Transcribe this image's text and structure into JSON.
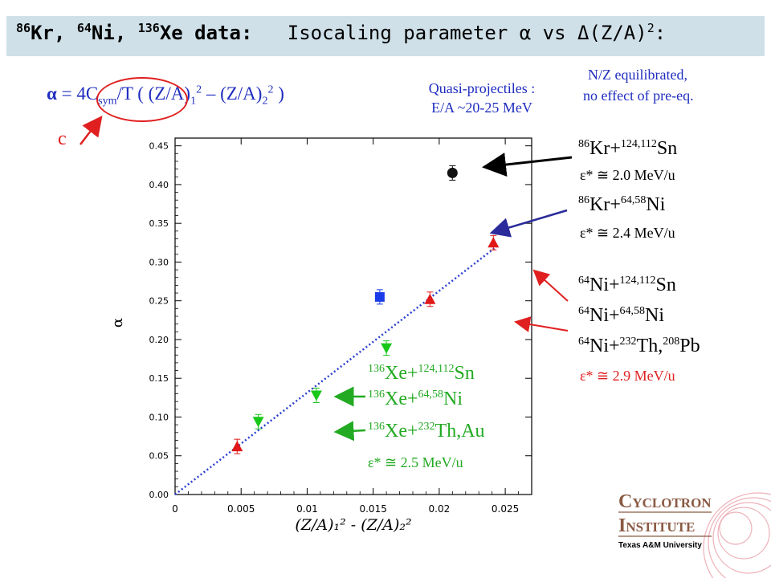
{
  "title": {
    "isotopes": "Kr, Ni, Xe data:",
    "kr_mass": "86",
    "ni_mass": "64",
    "xe_mass": "136",
    "rest": "Isocaling parameter α vs Δ(Z/A)",
    "rest_sup": "2",
    "colon": ":"
  },
  "formula": {
    "alpha": "α",
    "eq": " = 4C",
    "sym": "sym",
    "mid": "/T ( (Z/A)",
    "sub1": "1",
    "sup1": "2",
    "minus": " – (Z/A)",
    "sub2": "2",
    "sup2": "2",
    "close": " )",
    "c_label": "c"
  },
  "notes": {
    "quasi_line1": "Quasi-projectiles :",
    "quasi_line2": "E/A ~20-25 MeV",
    "nz_line1": "N/Z equilibrated,",
    "nz_line2": "no effect of pre-eq."
  },
  "legend": {
    "kr_sn": {
      "mass": "86",
      "el": "Kr",
      "plus": "+",
      "tmass": "124,112",
      "tel": "Sn"
    },
    "kr_sn_e": "ε* ≅ 2.0 MeV/u",
    "kr_ni": {
      "mass": "86",
      "el": "Kr",
      "plus": "+",
      "tmass": "64,58",
      "tel": "Ni"
    },
    "kr_ni_e": "ε* ≅ 2.4 MeV/u",
    "ni_sn": {
      "mass": "64",
      "el": "Ni",
      "plus": "+",
      "tmass": "124,112",
      "tel": "Sn"
    },
    "ni_ni": {
      "mass": "64",
      "el": "Ni",
      "plus": "+",
      "tmass": "64,58",
      "tel": "Ni"
    },
    "ni_pb": {
      "mass": "64",
      "el": "Ni",
      "plus": "+",
      "tmass": "232",
      "tel": "Th,",
      "tmass2": "208",
      "tel2": "Pb"
    },
    "ni_e": "ε* ≅ 2.9 MeV/u",
    "xe_sn": {
      "mass": "136",
      "el": "Xe",
      "plus": "+",
      "tmass": "124,112",
      "tel": "Sn"
    },
    "xe_ni": {
      "mass": "136",
      "el": "Xe",
      "plus": "+",
      "tmass": "64,58",
      "tel": "Ni"
    },
    "xe_th": {
      "mass": "136",
      "el": "Xe",
      "plus": "+",
      "tmass": "232",
      "tel": "Th,Au"
    },
    "xe_e": "ε* ≅ 2.5 MeV/u"
  },
  "logo": {
    "line1_cap": "C",
    "line1_rest": "YCLOTRON",
    "line2_cap": "I",
    "line2_rest": "NSTITUTE",
    "line3": "Texas A&M University"
  },
  "colors": {
    "blue_text": "#1f2dbf",
    "red": "#e02020",
    "green": "#22aa22",
    "black": "#000000",
    "fit_line": "#2a3fd0",
    "marker_red": "#e01818",
    "marker_green": "#18c818",
    "marker_blue": "#1a3ce8",
    "marker_black": "#111111"
  },
  "chart_data": {
    "type": "scatter",
    "xlabel": "(Z/A)₁² - (Z/A)₂²",
    "ylabel": "α",
    "xlim": [
      0,
      0.027
    ],
    "ylim": [
      0,
      0.46
    ],
    "x_ticks": [
      0,
      0.005,
      0.01,
      0.015,
      0.02,
      0.025
    ],
    "x_tick_labels": [
      "0",
      "0.005",
      "0.01",
      "0.015",
      "0.02",
      "0.025"
    ],
    "y_ticks": [
      0,
      0.05,
      0.1,
      0.15,
      0.2,
      0.25,
      0.3,
      0.35,
      0.4,
      0.45
    ],
    "y_tick_labels": [
      "0.00",
      "0.05",
      "0.10",
      "0.15",
      "0.20",
      "0.25",
      "0.30",
      "0.35",
      "0.40",
      "0.45"
    ],
    "grid": false,
    "series": [
      {
        "marker": "triangle-up",
        "color": "#e01818",
        "points": [
          {
            "x": 0.0047,
            "y": 0.062
          },
          {
            "x": 0.0193,
            "y": 0.252
          },
          {
            "x": 0.0241,
            "y": 0.325
          }
        ]
      },
      {
        "marker": "triangle-down",
        "color": "#18c818",
        "points": [
          {
            "x": 0.0063,
            "y": 0.094
          },
          {
            "x": 0.0107,
            "y": 0.128
          },
          {
            "x": 0.016,
            "y": 0.189
          }
        ]
      },
      {
        "marker": "square",
        "color": "#1a3ce8",
        "points": [
          {
            "x": 0.0155,
            "y": 0.255
          }
        ]
      },
      {
        "marker": "circle",
        "color": "#111111",
        "points": [
          {
            "x": 0.021,
            "y": 0.415
          }
        ]
      }
    ],
    "fit_line": {
      "x": [
        0.0,
        0.0245
      ],
      "y": [
        0.0,
        0.322
      ]
    }
  }
}
